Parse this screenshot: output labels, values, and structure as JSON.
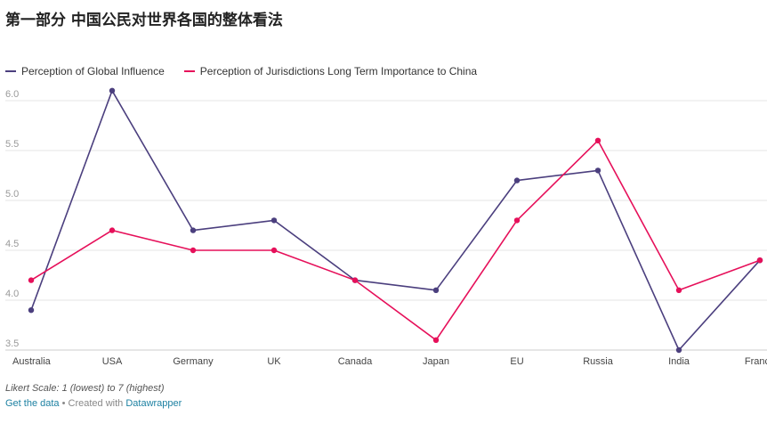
{
  "title": "第一部分 中国公民对世界各国的整体看法",
  "legend": [
    {
      "label": "Perception of Global Influence",
      "color": "#4b3f7e"
    },
    {
      "label": "Perception of Jurisdictions Long Term Importance to China",
      "color": "#e6105a"
    }
  ],
  "chart_data": {
    "type": "line",
    "categories": [
      "Australia",
      "USA",
      "Germany",
      "UK",
      "Canada",
      "Japan",
      "EU",
      "Russia",
      "India",
      "France"
    ],
    "y_ticks": [
      "6.0",
      "5.5",
      "5.0",
      "4.5",
      "4.0",
      "3.5"
    ],
    "ylim": [
      3.5,
      6.1
    ],
    "grid": true,
    "legend_position": "top-left",
    "series": [
      {
        "name": "Perception of Global Influence",
        "color": "#4b3f7e",
        "values": [
          3.9,
          6.1,
          4.7,
          4.8,
          4.2,
          4.1,
          5.2,
          5.3,
          3.5,
          4.4
        ]
      },
      {
        "name": "Perception of Jurisdictions Long Term Importance to China",
        "color": "#e6105a",
        "values": [
          4.2,
          4.7,
          4.5,
          4.5,
          4.2,
          3.6,
          4.8,
          5.6,
          4.1,
          4.4
        ]
      }
    ]
  },
  "footer": {
    "note": "Likert Scale: 1 (lowest) to 7 (highest)",
    "get_data": "Get the data",
    "separator": " • Created with ",
    "made_with": "Datawrapper"
  }
}
